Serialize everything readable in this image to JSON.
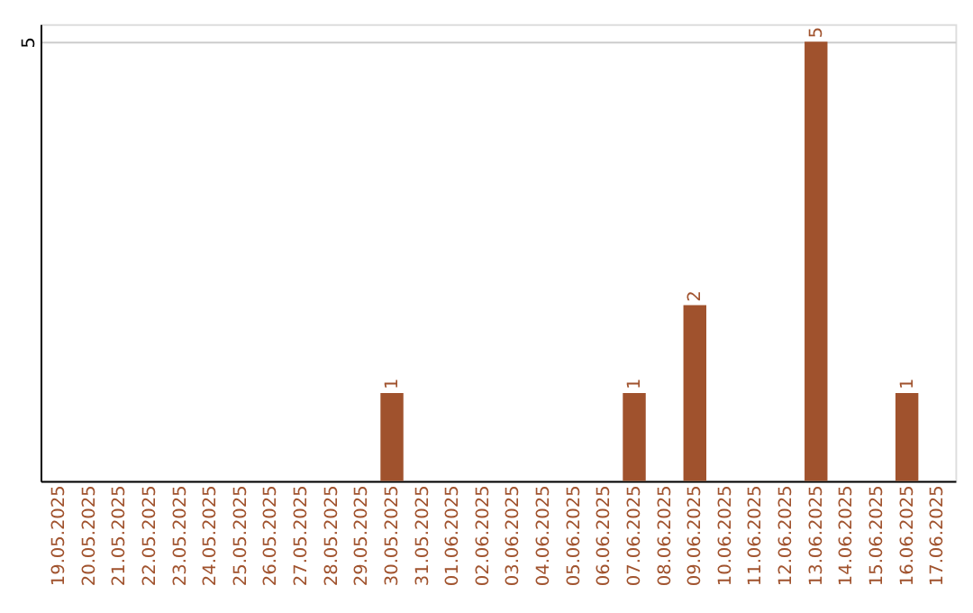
{
  "chart_data": {
    "type": "bar",
    "categories": [
      "19.05.2025",
      "20.05.2025",
      "21.05.2025",
      "22.05.2025",
      "23.05.2025",
      "24.05.2025",
      "25.05.2025",
      "26.05.2025",
      "27.05.2025",
      "28.05.2025",
      "29.05.2025",
      "30.05.2025",
      "31.05.2025",
      "01.06.2025",
      "02.06.2025",
      "03.06.2025",
      "04.06.2025",
      "05.06.2025",
      "06.06.2025",
      "07.06.2025",
      "08.06.2025",
      "09.06.2025",
      "10.06.2025",
      "11.06.2025",
      "12.06.2025",
      "13.06.2025",
      "14.06.2025",
      "15.06.2025",
      "16.06.2025",
      "17.06.2025"
    ],
    "values": [
      0,
      0,
      0,
      0,
      0,
      0,
      0,
      0,
      0,
      0,
      0,
      1,
      0,
      0,
      0,
      0,
      0,
      0,
      0,
      1,
      0,
      2,
      0,
      0,
      0,
      5,
      0,
      0,
      1,
      0
    ],
    "value_labels": [
      null,
      null,
      null,
      null,
      null,
      null,
      null,
      null,
      null,
      null,
      null,
      "1",
      null,
      null,
      null,
      null,
      null,
      null,
      null,
      "1",
      null,
      "2",
      null,
      null,
      null,
      "5",
      null,
      null,
      "1",
      null
    ],
    "color": "#a0522d",
    "ylim": [
      0,
      5.2
    ],
    "yticks": [
      5
    ],
    "grid": "y"
  }
}
